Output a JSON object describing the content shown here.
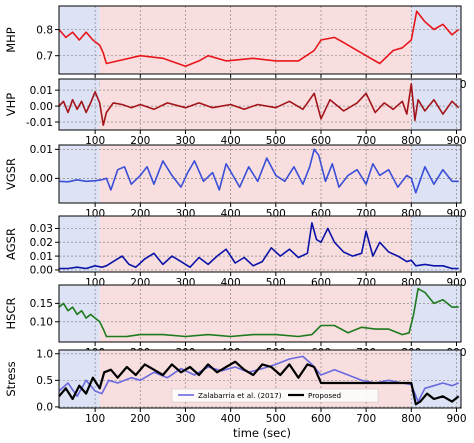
{
  "figure": {
    "xlabel": "time (sec)",
    "xticks": [
      "100",
      "200",
      "300",
      "400",
      "500",
      "600",
      "700",
      "800",
      "900"
    ],
    "colors": {
      "calm_band": "#dde3f4",
      "stress_band": "#f8dede",
      "grid": "#8a8a8a"
    }
  },
  "chart_data": [
    {
      "type": "line",
      "ylabel": "MHP",
      "xlim": [
        20,
        910
      ],
      "ylim": [
        0.63,
        0.89
      ],
      "yticks": [
        "0.7",
        "0.8"
      ],
      "ytick_values": [
        0.7,
        0.8
      ],
      "bands": [
        {
          "from": 20,
          "to": 110,
          "state": "calm"
        },
        {
          "from": 110,
          "to": 800,
          "state": "stress"
        },
        {
          "from": 800,
          "to": 910,
          "state": "calm"
        }
      ],
      "series": [
        {
          "color": "#e8161b",
          "x": [
            20,
            35,
            50,
            65,
            80,
            95,
            110,
            118,
            125,
            150,
            200,
            250,
            300,
            330,
            350,
            390,
            450,
            500,
            550,
            585,
            600,
            630,
            650,
            700,
            730,
            760,
            780,
            800,
            812,
            830,
            850,
            870,
            890,
            905
          ],
          "y": [
            0.8,
            0.77,
            0.79,
            0.76,
            0.79,
            0.76,
            0.74,
            0.71,
            0.67,
            0.68,
            0.7,
            0.69,
            0.66,
            0.68,
            0.7,
            0.68,
            0.69,
            0.68,
            0.68,
            0.72,
            0.76,
            0.77,
            0.75,
            0.7,
            0.67,
            0.72,
            0.73,
            0.76,
            0.87,
            0.83,
            0.8,
            0.82,
            0.78,
            0.8
          ]
        }
      ]
    },
    {
      "type": "line",
      "ylabel": "VHP",
      "xlim": [
        20,
        910
      ],
      "ylim": [
        -0.015,
        0.017
      ],
      "yticks": [
        "-0.01",
        "0.00",
        "0.01"
      ],
      "ytick_values": [
        -0.01,
        0.0,
        0.01
      ],
      "bands": [
        {
          "from": 20,
          "to": 110,
          "state": "calm"
        },
        {
          "from": 110,
          "to": 800,
          "state": "stress"
        },
        {
          "from": 800,
          "to": 910,
          "state": "calm"
        }
      ],
      "series": [
        {
          "color": "#a3141a",
          "x": [
            20,
            30,
            40,
            50,
            60,
            70,
            80,
            90,
            100,
            110,
            118,
            125,
            140,
            160,
            180,
            200,
            230,
            260,
            300,
            330,
            360,
            400,
            430,
            460,
            500,
            530,
            560,
            585,
            600,
            620,
            650,
            680,
            700,
            720,
            740,
            760,
            780,
            790,
            800,
            808,
            815,
            830,
            850,
            870,
            890,
            905
          ],
          "y": [
            0.0,
            0.003,
            -0.004,
            0.004,
            -0.002,
            0.003,
            -0.004,
            0.002,
            0.009,
            0.002,
            -0.012,
            -0.004,
            0.002,
            0.001,
            -0.001,
            0.001,
            -0.002,
            0.002,
            -0.001,
            0.002,
            -0.001,
            0.001,
            -0.002,
            0.001,
            -0.001,
            0.003,
            -0.002,
            0.008,
            -0.008,
            0.004,
            -0.003,
            0.002,
            0.008,
            -0.004,
            0.002,
            -0.002,
            0.003,
            -0.005,
            0.014,
            -0.009,
            0.004,
            -0.003,
            0.004,
            -0.005,
            0.003,
            -0.001
          ]
        }
      ]
    },
    {
      "type": "line",
      "ylabel": "VGSR",
      "xlim": [
        20,
        910
      ],
      "ylim": [
        -0.0085,
        0.0115
      ],
      "yticks": [
        "0.00",
        "0.01"
      ],
      "ytick_values": [
        0.0,
        0.01
      ],
      "bands": [
        {
          "from": 20,
          "to": 110,
          "state": "calm"
        },
        {
          "from": 110,
          "to": 800,
          "state": "stress"
        },
        {
          "from": 800,
          "to": 910,
          "state": "calm"
        }
      ],
      "series": [
        {
          "color": "#3a4fd8",
          "x": [
            20,
            40,
            60,
            80,
            100,
            115,
            125,
            135,
            150,
            165,
            180,
            200,
            215,
            230,
            250,
            270,
            290,
            305,
            320,
            340,
            360,
            375,
            390,
            405,
            420,
            440,
            460,
            480,
            500,
            520,
            540,
            560,
            575,
            585,
            595,
            610,
            625,
            640,
            660,
            680,
            700,
            715,
            730,
            750,
            770,
            790,
            800,
            810,
            830,
            850,
            870,
            890,
            905
          ],
          "y": [
            -0.001,
            -0.0012,
            -0.0005,
            -0.001,
            -0.0008,
            -0.0005,
            0.0,
            -0.004,
            0.003,
            0.004,
            -0.002,
            0.001,
            0.004,
            -0.002,
            0.006,
            0.001,
            -0.003,
            0.002,
            0.006,
            -0.001,
            0.002,
            -0.004,
            0.005,
            0.001,
            -0.003,
            0.004,
            -0.001,
            0.007,
            0.001,
            -0.001,
            0.004,
            -0.002,
            0.004,
            0.01,
            0.008,
            -0.001,
            0.005,
            -0.003,
            0.001,
            0.003,
            -0.002,
            0.005,
            0.001,
            0.003,
            -0.003,
            0.001,
            0.0,
            -0.005,
            0.004,
            -0.002,
            0.003,
            -0.001,
            -0.001
          ]
        }
      ]
    },
    {
      "type": "line",
      "ylabel": "AGSR",
      "xlim": [
        20,
        910
      ],
      "ylim": [
        -0.0015,
        0.039
      ],
      "yticks": [
        "0.00",
        "0.01",
        "0.02",
        "0.03"
      ],
      "ytick_values": [
        0.0,
        0.01,
        0.02,
        0.03
      ],
      "bands": [
        {
          "from": 20,
          "to": 110,
          "state": "calm"
        },
        {
          "from": 110,
          "to": 800,
          "state": "stress"
        },
        {
          "from": 800,
          "to": 910,
          "state": "calm"
        }
      ],
      "series": [
        {
          "color": "#0c13a8",
          "x": [
            20,
            40,
            60,
            80,
            100,
            115,
            125,
            140,
            160,
            175,
            190,
            210,
            230,
            250,
            270,
            290,
            310,
            330,
            350,
            370,
            390,
            410,
            430,
            450,
            470,
            490,
            510,
            530,
            550,
            570,
            580,
            590,
            600,
            615,
            630,
            650,
            670,
            690,
            700,
            715,
            730,
            750,
            770,
            790,
            800,
            810,
            830,
            850,
            870,
            890,
            905
          ],
          "y": [
            0.001,
            0.001,
            0.002,
            0.001,
            0.003,
            0.002,
            0.003,
            0.006,
            0.01,
            0.004,
            0.002,
            0.008,
            0.012,
            0.004,
            0.01,
            0.006,
            0.002,
            0.009,
            0.004,
            0.01,
            0.015,
            0.005,
            0.009,
            0.003,
            0.006,
            0.016,
            0.01,
            0.015,
            0.009,
            0.012,
            0.034,
            0.022,
            0.02,
            0.03,
            0.02,
            0.013,
            0.01,
            0.012,
            0.028,
            0.01,
            0.02,
            0.013,
            0.01,
            0.006,
            0.007,
            0.003,
            0.004,
            0.003,
            0.003,
            0.001,
            0.001
          ]
        }
      ]
    },
    {
      "type": "line",
      "ylabel": "HSCR",
      "xlim": [
        20,
        910
      ],
      "ylim": [
        0.045,
        0.2
      ],
      "yticks": [
        "0.10",
        "0.15"
      ],
      "ytick_values": [
        0.1,
        0.15
      ],
      "bands": [
        {
          "from": 20,
          "to": 110,
          "state": "calm"
        },
        {
          "from": 110,
          "to": 800,
          "state": "stress"
        },
        {
          "from": 800,
          "to": 910,
          "state": "calm"
        }
      ],
      "series": [
        {
          "color": "#1d7a1d",
          "x": [
            20,
            30,
            40,
            50,
            60,
            70,
            80,
            90,
            100,
            110,
            118,
            125,
            140,
            170,
            200,
            250,
            300,
            350,
            400,
            450,
            500,
            550,
            580,
            600,
            630,
            660,
            690,
            720,
            750,
            780,
            795,
            805,
            815,
            830,
            850,
            870,
            890,
            905
          ],
          "y": [
            0.14,
            0.15,
            0.13,
            0.14,
            0.12,
            0.13,
            0.11,
            0.12,
            0.11,
            0.1,
            0.08,
            0.06,
            0.06,
            0.06,
            0.065,
            0.065,
            0.06,
            0.065,
            0.06,
            0.065,
            0.065,
            0.06,
            0.065,
            0.09,
            0.09,
            0.07,
            0.085,
            0.08,
            0.08,
            0.065,
            0.07,
            0.12,
            0.19,
            0.18,
            0.15,
            0.16,
            0.14,
            0.14
          ]
        }
      ]
    },
    {
      "type": "line",
      "ylabel": "Stress",
      "xlim": [
        20,
        910
      ],
      "ylim": [
        -0.02,
        1.07
      ],
      "yticks": [
        "0.0",
        "0.5",
        "1.0"
      ],
      "ytick_values": [
        0.0,
        0.5,
        1.0
      ],
      "bands": [
        {
          "from": 20,
          "to": 110,
          "state": "calm"
        },
        {
          "from": 110,
          "to": 800,
          "state": "stress"
        },
        {
          "from": 800,
          "to": 910,
          "state": "calm"
        }
      ],
      "legend": {
        "placement": "lower-center",
        "entries": [
          "Zalabarria et al. (2017)",
          "Proposed"
        ]
      },
      "series": [
        {
          "name": "Zalabarria et al. (2017)",
          "color": "#6a6ae0",
          "x": [
            20,
            40,
            60,
            80,
            100,
            115,
            130,
            150,
            180,
            200,
            230,
            260,
            290,
            320,
            350,
            380,
            410,
            440,
            470,
            500,
            530,
            560,
            580,
            600,
            630,
            660,
            690,
            720,
            750,
            780,
            800,
            815,
            830,
            850,
            870,
            890,
            905
          ],
          "y": [
            0.3,
            0.45,
            0.2,
            0.5,
            0.3,
            0.25,
            0.5,
            0.45,
            0.55,
            0.5,
            0.65,
            0.55,
            0.72,
            0.6,
            0.75,
            0.68,
            0.75,
            0.65,
            0.72,
            0.8,
            0.9,
            0.95,
            0.8,
            0.6,
            0.7,
            0.6,
            0.5,
            0.45,
            0.5,
            0.45,
            0.42,
            0.1,
            0.35,
            0.4,
            0.45,
            0.4,
            0.45
          ]
        },
        {
          "name": "Proposed",
          "color": "#000000",
          "x": [
            20,
            35,
            50,
            65,
            80,
            95,
            110,
            120,
            135,
            150,
            170,
            190,
            210,
            230,
            250,
            270,
            290,
            310,
            330,
            350,
            370,
            390,
            410,
            430,
            450,
            470,
            490,
            510,
            530,
            550,
            570,
            585,
            600,
            630,
            660,
            690,
            720,
            760,
            800,
            810,
            820,
            835,
            850,
            870,
            890,
            905
          ],
          "y": [
            0.2,
            0.35,
            0.15,
            0.4,
            0.25,
            0.55,
            0.35,
            0.65,
            0.7,
            0.55,
            0.75,
            0.6,
            0.8,
            0.7,
            0.6,
            0.8,
            0.65,
            0.75,
            0.6,
            0.8,
            0.65,
            0.75,
            0.85,
            0.7,
            0.6,
            0.8,
            0.75,
            0.6,
            0.8,
            0.55,
            0.8,
            0.75,
            0.45,
            0.45,
            0.45,
            0.45,
            0.45,
            0.45,
            0.45,
            0.05,
            0.1,
            0.25,
            0.15,
            0.2,
            0.1,
            0.2
          ]
        }
      ]
    }
  ]
}
